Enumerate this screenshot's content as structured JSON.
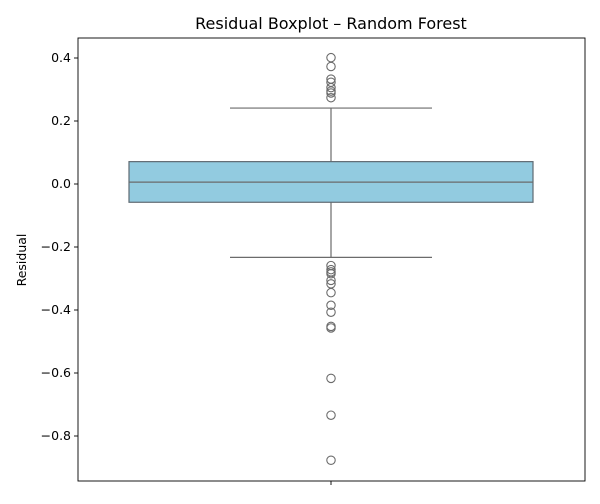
{
  "chart_data": {
    "type": "boxplot",
    "title": "Residual Boxplot – Random Forest",
    "xlabel": "",
    "ylabel": "Residual",
    "ylim": [
      -0.95,
      0.46
    ],
    "yticks": [
      0.4,
      0.2,
      0.0,
      -0.2,
      -0.4,
      -0.6,
      -0.8
    ],
    "ytick_labels": [
      "0.4",
      "0.2",
      "0.0",
      "−0.2",
      "−0.4",
      "−0.6",
      "−0.8"
    ],
    "grid": false,
    "legend": false,
    "box": {
      "q1": -0.058,
      "median": 0.006,
      "q3": 0.071,
      "whisker_low": -0.233,
      "whisker_high": 0.241
    },
    "outliers_high": [
      0.401,
      0.373,
      0.333,
      0.323,
      0.306,
      0.295,
      0.289,
      0.274
    ],
    "outliers_low": [
      -0.259,
      -0.272,
      -0.279,
      -0.285,
      -0.306,
      -0.317,
      -0.345,
      -0.385,
      -0.407,
      -0.452,
      -0.457,
      -0.617,
      -0.734,
      -0.877
    ],
    "colors": {
      "box_fill": "#92cbe0",
      "box_edge": "#5f6a72",
      "line": "#6b6b6b",
      "axis": "#000000"
    }
  }
}
